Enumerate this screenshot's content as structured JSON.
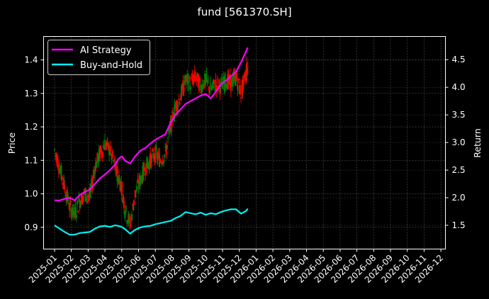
{
  "chart_data": {
    "type": "line",
    "title": "fund [561370.SH]",
    "xlabel": "",
    "ylabel": "Price",
    "y2label": "Return",
    "ylim": [
      0.835,
      1.47
    ],
    "y2lim": [
      1.07,
      4.92
    ],
    "grid": true,
    "legend_position": "upper left",
    "yticks": [
      "0.9",
      "1.0",
      "1.1",
      "1.2",
      "1.3",
      "1.4"
    ],
    "y2ticks": [
      "1.5",
      "2.0",
      "2.5",
      "3.0",
      "3.5",
      "4.0",
      "4.5"
    ],
    "xticks": [
      "2025-01",
      "2025-02",
      "2025-03",
      "2025-04",
      "2025-05",
      "2025-06",
      "2025-07",
      "2025-08",
      "2025-09",
      "2025-10",
      "2025-11",
      "2025-12",
      "2026-01",
      "2026-02",
      "2026-03",
      "2026-04",
      "2026-05",
      "2026-06",
      "2026-07",
      "2026-08",
      "2026-09",
      "2026-10",
      "2026-11",
      "2026-12"
    ],
    "x_month_index": [
      0.0,
      0.3,
      0.6,
      0.9,
      1.2,
      1.5,
      1.8,
      2.1,
      2.4,
      2.7,
      3.0,
      3.3,
      3.6,
      3.8,
      4.0,
      4.2,
      4.5,
      4.8,
      5.1,
      5.4,
      5.7,
      6.0,
      6.3,
      6.6,
      6.9,
      7.2,
      7.5,
      7.8,
      8.1,
      8.4,
      8.7,
      9.0,
      9.3,
      9.6,
      9.9,
      10.2,
      10.5,
      10.8,
      11.1,
      11.4,
      11.5
    ],
    "series": [
      {
        "name": "AI Strategy",
        "axis": "right",
        "color": "#ff00ff",
        "values": [
          1.95,
          1.95,
          1.98,
          2.0,
          1.95,
          2.05,
          2.1,
          2.15,
          2.25,
          2.35,
          2.42,
          2.5,
          2.6,
          2.7,
          2.75,
          2.67,
          2.62,
          2.75,
          2.85,
          2.9,
          2.98,
          3.05,
          3.1,
          3.15,
          3.35,
          3.5,
          3.6,
          3.7,
          3.75,
          3.8,
          3.85,
          3.88,
          3.8,
          3.92,
          4.05,
          4.12,
          4.2,
          4.28,
          4.45,
          4.65,
          4.72
        ]
      },
      {
        "name": "Buy-and-Hold",
        "axis": "right",
        "color": "#00f0f0",
        "values": [
          1.5,
          1.44,
          1.38,
          1.33,
          1.33,
          1.36,
          1.37,
          1.38,
          1.44,
          1.48,
          1.49,
          1.47,
          1.5,
          1.49,
          1.47,
          1.43,
          1.35,
          1.42,
          1.46,
          1.48,
          1.49,
          1.52,
          1.54,
          1.56,
          1.58,
          1.63,
          1.67,
          1.74,
          1.72,
          1.7,
          1.73,
          1.69,
          1.72,
          1.7,
          1.74,
          1.77,
          1.79,
          1.79,
          1.71,
          1.76,
          1.8
        ]
      },
      {
        "name": "Price (candles)",
        "axis": "left",
        "up_color": "#008000",
        "down_color": "#ff0000",
        "values": [
          1.13,
          1.08,
          1.02,
          0.96,
          0.94,
          0.98,
          1.0,
          0.99,
          1.08,
          1.12,
          1.15,
          1.13,
          1.08,
          1.05,
          1.02,
          0.95,
          0.91,
          1.0,
          1.04,
          1.08,
          1.1,
          1.12,
          1.1,
          1.12,
          1.2,
          1.26,
          1.29,
          1.34,
          1.33,
          1.35,
          1.32,
          1.34,
          1.31,
          1.33,
          1.32,
          1.34,
          1.33,
          1.35,
          1.3,
          1.36,
          1.38
        ]
      }
    ]
  },
  "legend": {
    "items": [
      {
        "label": "AI Strategy",
        "color": "#ff00ff"
      },
      {
        "label": "Buy-and-Hold",
        "color": "#00f0f0"
      }
    ]
  }
}
